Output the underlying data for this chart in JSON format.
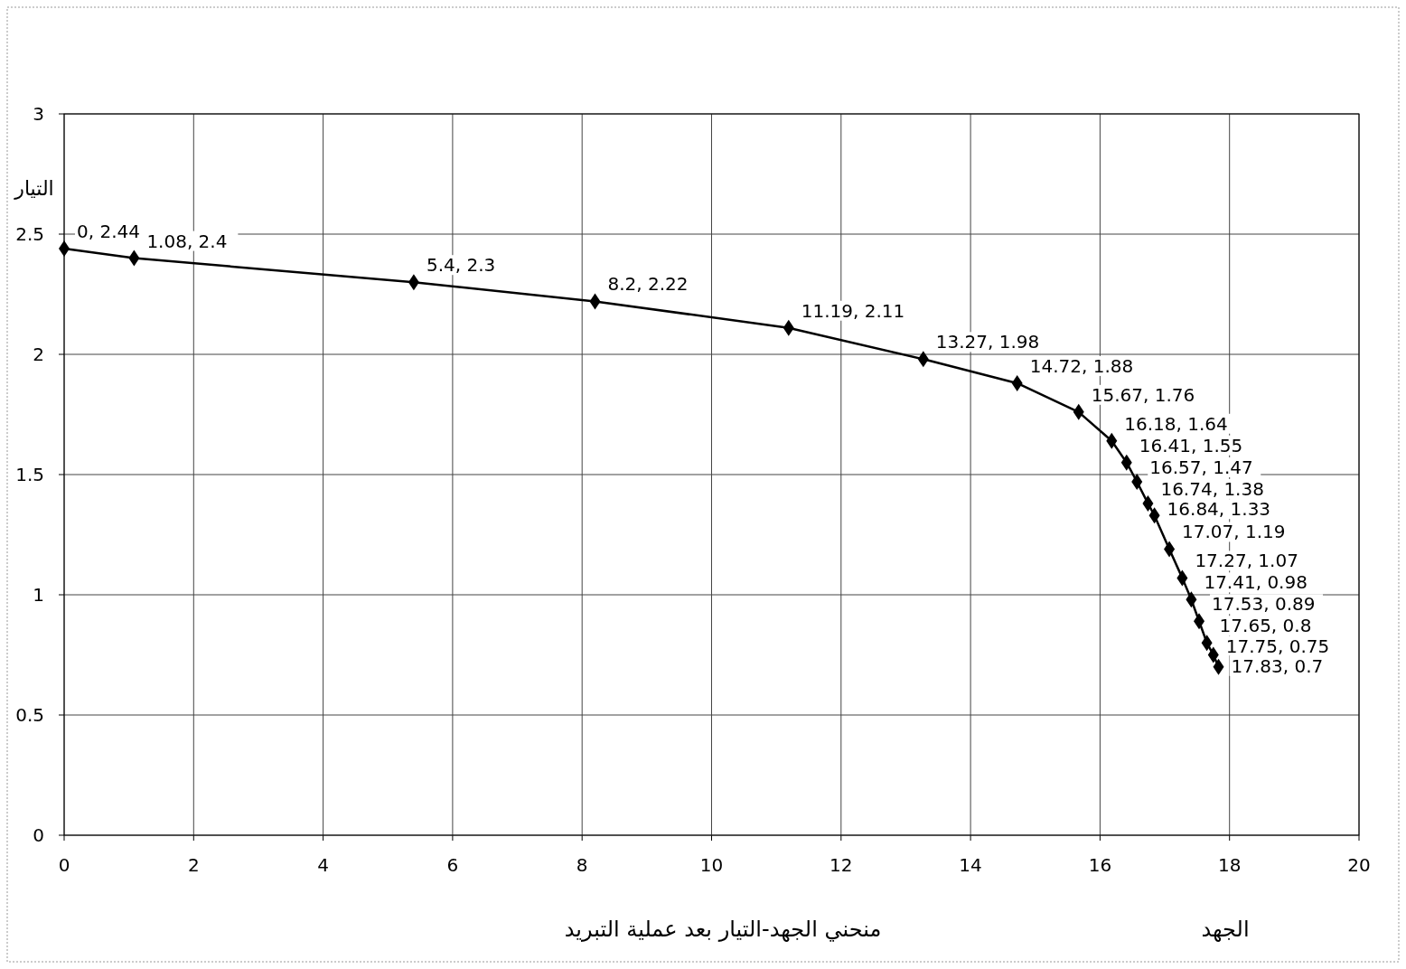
{
  "chart_data": {
    "type": "scatter",
    "title": "منحني الجهد-التيار بعد عملية التبريد",
    "xlabel": "الجهد",
    "ylabel": "التيار",
    "x": [
      0,
      1.08,
      5.4,
      8.2,
      11.19,
      13.27,
      14.72,
      15.67,
      16.18,
      16.41,
      16.57,
      16.74,
      16.84,
      17.07,
      17.27,
      17.41,
      17.53,
      17.65,
      17.75,
      17.83
    ],
    "series": [
      {
        "color": "#000000",
        "type": "line",
        "marker": "diamond",
        "line_style": "solid",
        "values": [
          2.44,
          2.4,
          2.3,
          2.22,
          2.11,
          1.98,
          1.88,
          1.76,
          1.64,
          1.55,
          1.47,
          1.38,
          1.33,
          1.19,
          1.07,
          0.98,
          0.89,
          0.8,
          0.75,
          0.7
        ],
        "value_labels": [
          "0, 2.44",
          "1.08, 2.4",
          "5.4, 2.3",
          "8.2, 2.22",
          "11.19, 2.11",
          "13.27, 1.98",
          "14.72, 1.88",
          "15.67, 1.76",
          "16.18, 1.64",
          "16.41, 1.55",
          "16.57, 1.47",
          "16.74, 1.38",
          "16.84, 1.33",
          "17.07, 1.19",
          "17.27, 1.07",
          "17.41, 0.98",
          "17.53, 0.89",
          "17.65, 0.8",
          "17.75, 0.75",
          "17.83, 0.7"
        ]
      }
    ],
    "xlim": [
      0,
      20
    ],
    "xticks": [
      0,
      2,
      4,
      6,
      8,
      10,
      12,
      14,
      16,
      18,
      20
    ],
    "ylim": [
      0,
      3
    ],
    "yticks": [
      0,
      0.5,
      1,
      1.5,
      2,
      2.5,
      3
    ],
    "grid": true
  }
}
